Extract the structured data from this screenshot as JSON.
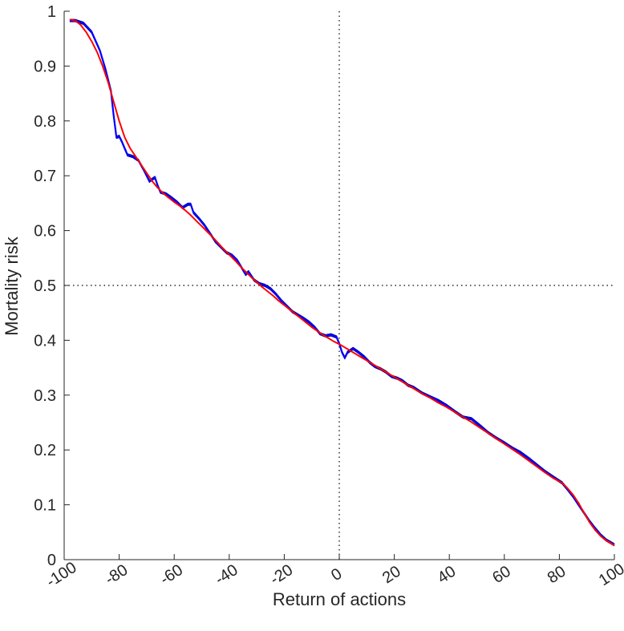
{
  "chart_data": {
    "type": "line",
    "xlabel": "Return of actions",
    "ylabel": "Mortality risk",
    "xlim": [
      -100,
      100
    ],
    "ylim": [
      0,
      1
    ],
    "x_ticks": [
      "-100",
      "-80",
      "-60",
      "-40",
      "-20",
      "0",
      "20",
      "40",
      "60",
      "80",
      "100"
    ],
    "y_ticks": [
      "0",
      "0.1",
      "0.2",
      "0.3",
      "0.4",
      "0.5",
      "0.6",
      "0.7",
      "0.8",
      "0.9",
      "1"
    ],
    "x_tick_values": [
      -100,
      -80,
      -60,
      -40,
      -20,
      0,
      20,
      40,
      60,
      80,
      100
    ],
    "y_tick_values": [
      0,
      0.1,
      0.2,
      0.3,
      0.4,
      0.5,
      0.6,
      0.7,
      0.8,
      0.9,
      1
    ],
    "reference_lines": [
      {
        "axis": "y",
        "value": 0.5,
        "style": "dotted",
        "color": "#000000"
      },
      {
        "axis": "x",
        "value": 0,
        "style": "dotted",
        "color": "#000000"
      }
    ],
    "grid": false,
    "series": [
      {
        "color": "#0000ff",
        "x": [
          -98,
          -96,
          -93,
          -90,
          -87,
          -85,
          -83,
          -82,
          -81,
          -80,
          -79,
          -77,
          -75,
          -73,
          -71,
          -69,
          -67,
          -66,
          -65,
          -63,
          -61,
          -59,
          -57,
          -55,
          -54,
          -53,
          -51,
          -49,
          -47,
          -45,
          -43,
          -41,
          -39,
          -37,
          -35,
          -34,
          -33,
          -31,
          -29,
          -27,
          -25,
          -23,
          -21,
          -19,
          -17,
          -15,
          -13,
          -11,
          -9,
          -7,
          -5,
          -3,
          -1,
          0,
          1,
          2,
          3,
          5,
          7,
          9,
          11,
          13,
          15,
          17,
          19,
          21,
          23,
          25,
          27,
          30,
          33,
          36,
          39,
          42,
          45,
          48,
          51,
          54,
          57,
          60,
          63,
          66,
          69,
          72,
          75,
          78,
          81,
          83,
          85,
          87,
          89,
          91,
          93,
          95,
          97,
          100
        ],
        "y": [
          0.983,
          0.983,
          0.978,
          0.962,
          0.928,
          0.895,
          0.855,
          0.81,
          0.77,
          0.772,
          0.762,
          0.738,
          0.735,
          0.728,
          0.71,
          0.69,
          0.697,
          0.682,
          0.67,
          0.667,
          0.66,
          0.652,
          0.642,
          0.648,
          0.648,
          0.633,
          0.622,
          0.61,
          0.595,
          0.58,
          0.57,
          0.56,
          0.555,
          0.545,
          0.528,
          0.52,
          0.525,
          0.51,
          0.503,
          0.5,
          0.494,
          0.484,
          0.472,
          0.462,
          0.452,
          0.446,
          0.44,
          0.433,
          0.424,
          0.412,
          0.408,
          0.41,
          0.406,
          0.394,
          0.378,
          0.368,
          0.378,
          0.385,
          0.378,
          0.37,
          0.36,
          0.352,
          0.348,
          0.342,
          0.334,
          0.331,
          0.326,
          0.318,
          0.314,
          0.304,
          0.297,
          0.29,
          0.281,
          0.27,
          0.26,
          0.257,
          0.245,
          0.232,
          0.222,
          0.213,
          0.203,
          0.195,
          0.184,
          0.172,
          0.16,
          0.15,
          0.14,
          0.128,
          0.115,
          0.1,
          0.085,
          0.07,
          0.057,
          0.045,
          0.036,
          0.027
        ]
      },
      {
        "color": "#ff0000",
        "x": [
          -98,
          -96,
          -94,
          -92,
          -90,
          -88,
          -86,
          -84,
          -82,
          -80,
          -78,
          -76,
          -74,
          -72,
          -70,
          -68,
          -66,
          -64,
          -62,
          -60,
          -58,
          -56,
          -54,
          -52,
          -50,
          -48,
          -46,
          -44,
          -42,
          -40,
          -38,
          -36,
          -34,
          -32,
          -30,
          -28,
          -26,
          -24,
          -22,
          -20,
          -18,
          -16,
          -14,
          -12,
          -10,
          -8,
          -6,
          -4,
          -2,
          0,
          2,
          4,
          6,
          8,
          10,
          12,
          14,
          16,
          18,
          20,
          22,
          24,
          26,
          28,
          30,
          33,
          36,
          39,
          42,
          45,
          48,
          51,
          54,
          57,
          60,
          63,
          66,
          69,
          72,
          75,
          78,
          81,
          83,
          85,
          87,
          89,
          91,
          93,
          95,
          97,
          100
        ],
        "y": [
          0.985,
          0.983,
          0.975,
          0.962,
          0.945,
          0.925,
          0.9,
          0.87,
          0.835,
          0.8,
          0.77,
          0.75,
          0.735,
          0.72,
          0.705,
          0.69,
          0.678,
          0.668,
          0.66,
          0.652,
          0.645,
          0.637,
          0.628,
          0.618,
          0.608,
          0.598,
          0.588,
          0.577,
          0.566,
          0.556,
          0.546,
          0.535,
          0.525,
          0.515,
          0.506,
          0.497,
          0.489,
          0.481,
          0.472,
          0.464,
          0.456,
          0.448,
          0.44,
          0.432,
          0.424,
          0.417,
          0.41,
          0.404,
          0.398,
          0.393,
          0.387,
          0.381,
          0.375,
          0.369,
          0.363,
          0.357,
          0.351,
          0.345,
          0.339,
          0.333,
          0.327,
          0.321,
          0.315,
          0.309,
          0.303,
          0.295,
          0.286,
          0.278,
          0.269,
          0.26,
          0.251,
          0.241,
          0.231,
          0.221,
          0.211,
          0.201,
          0.191,
          0.18,
          0.169,
          0.158,
          0.148,
          0.14,
          0.13,
          0.118,
          0.103,
          0.085,
          0.068,
          0.054,
          0.043,
          0.035,
          0.026
        ]
      }
    ]
  }
}
